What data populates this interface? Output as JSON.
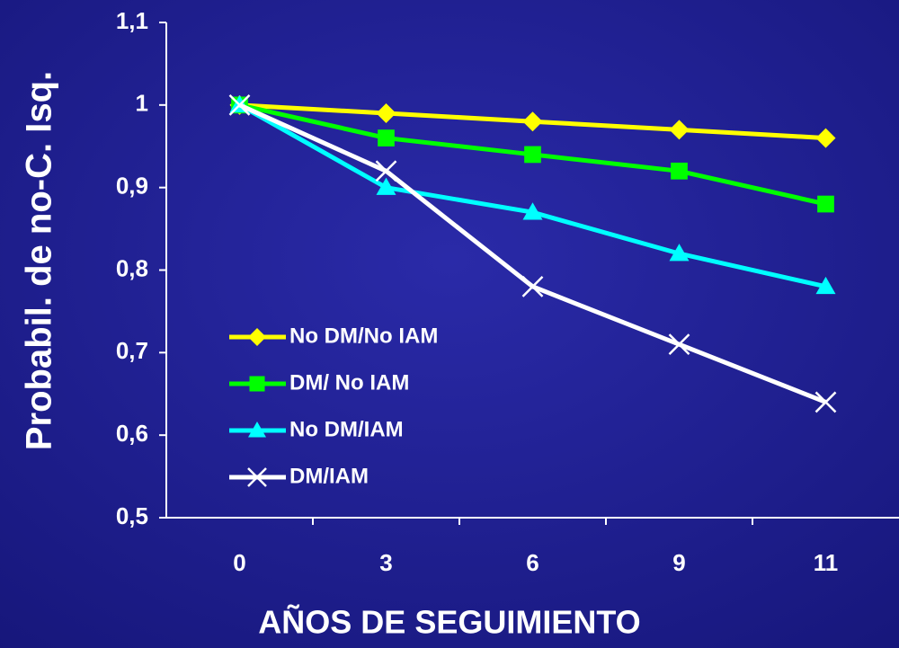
{
  "chart_data": {
    "type": "line",
    "x_label": "AÑOS DE SEGUIMIENTO",
    "y_label": "Probabil. de no-C. Isq.",
    "categories": [
      "0",
      "3",
      "6",
      "9",
      "11"
    ],
    "ylim": [
      0.5,
      1.1
    ],
    "yticks": [
      {
        "value": 0.5,
        "label": "0,5"
      },
      {
        "value": 0.6,
        "label": "0,6"
      },
      {
        "value": 0.7,
        "label": "0,7"
      },
      {
        "value": 0.8,
        "label": "0,8"
      },
      {
        "value": 0.9,
        "label": "0,9"
      },
      1,
      {
        "value": 1.1,
        "label": "1,1"
      }
    ],
    "series": [
      {
        "name": "No DM/No IAM",
        "color": "#ffff00",
        "marker": "diamond",
        "values": [
          1,
          0.99,
          0.98,
          0.97,
          0.96
        ]
      },
      {
        "name": "DM/ No IAM",
        "color": "#00ff00",
        "marker": "square",
        "values": [
          1,
          0.96,
          0.94,
          0.92,
          0.88
        ]
      },
      {
        "name": "No DM/IAM",
        "color": "#00ffff",
        "marker": "triangle",
        "values": [
          1,
          0.9,
          0.87,
          0.82,
          0.78
        ]
      },
      {
        "name": "DM/IAM",
        "color": "#ffffff",
        "marker": "x",
        "values": [
          1,
          0.92,
          0.78,
          0.71,
          0.64
        ]
      }
    ]
  }
}
